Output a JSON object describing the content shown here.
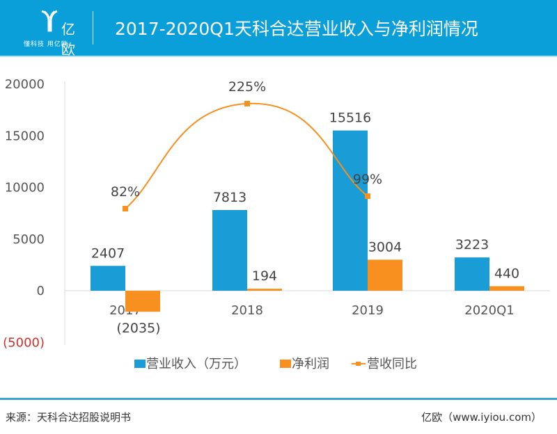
{
  "header": {
    "logo_text": "亿欧",
    "logo_slogan": "懂科技 用亿欧",
    "title": "2017-2020Q1天科合达营业收入与净利润情况"
  },
  "chart_data": {
    "type": "bar",
    "title": "2017-2020Q1天科合达营业收入与净利润情况",
    "categories": [
      "2017",
      "2018",
      "2019",
      "2020Q1"
    ],
    "series": [
      {
        "name": "营业收入（万元）",
        "type": "bar",
        "color": "#1a9dd6",
        "values": [
          2407,
          7813,
          15516,
          3223
        ],
        "labels": [
          "2407",
          "7813",
          "15516",
          "3223"
        ]
      },
      {
        "name": "净利润",
        "type": "bar",
        "color": "#f7901e",
        "values": [
          -2035,
          194,
          3004,
          440
        ],
        "labels": [
          "(2035)",
          "194",
          "3004",
          "440"
        ]
      },
      {
        "name": "营收同比",
        "type": "line",
        "color": "#f7901e",
        "axis": "secondary",
        "values": [
          82,
          225,
          99,
          null
        ],
        "labels": [
          "82%",
          "225%",
          "99%",
          ""
        ]
      }
    ],
    "y_axis": {
      "range": [
        -5000,
        20000
      ],
      "ticks": [
        20000,
        15000,
        10000,
        5000,
        0,
        -5000
      ],
      "tick_labels": [
        "20000",
        "15000",
        "10000",
        "5000",
        "0",
        "(5000)"
      ]
    },
    "secondary_axis": {
      "unit": "%",
      "visible": false
    },
    "xlabel": "",
    "ylabel": "",
    "grid": false,
    "legend": {
      "position": "bottom",
      "entries": [
        "营业收入（万元）",
        "净利润",
        "营收同比"
      ]
    }
  },
  "footer": {
    "source": "来源：天科合达招股说明书",
    "brand": "亿欧（www.iyiou.com）"
  }
}
